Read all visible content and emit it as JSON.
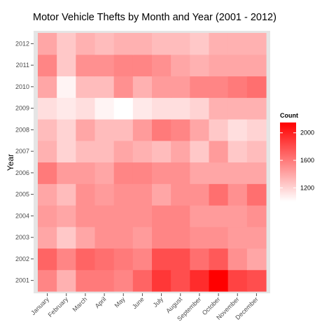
{
  "chart_data": {
    "type": "heatmap",
    "title": "Motor Vehicle Thefts by Month and Year (2001 - 2012)",
    "xlabel": "",
    "ylabel": "Year",
    "x": [
      "January",
      "February",
      "March",
      "April",
      "May",
      "June",
      "July",
      "August",
      "September",
      "October",
      "November",
      "December"
    ],
    "y": [
      "2001",
      "2002",
      "2003",
      "2004",
      "2005",
      "2006",
      "2007",
      "2008",
      "2009",
      "2010",
      "2011",
      "2012"
    ],
    "values": [
      [
        1550,
        1350,
        1600,
        1600,
        1550,
        1700,
        1900,
        1800,
        1950,
        2150,
        1850,
        1800
      ],
      [
        1700,
        1550,
        1700,
        1650,
        1600,
        1550,
        1800,
        1800,
        1650,
        1750,
        1500,
        1400
      ],
      [
        1400,
        1250,
        1400,
        1500,
        1500,
        1450,
        1550,
        1550,
        1500,
        1500,
        1450,
        1450
      ],
      [
        1450,
        1400,
        1500,
        1500,
        1500,
        1500,
        1550,
        1550,
        1450,
        1450,
        1450,
        1500
      ],
      [
        1400,
        1300,
        1500,
        1450,
        1500,
        1500,
        1400,
        1500,
        1500,
        1650,
        1500,
        1650
      ],
      [
        1600,
        1450,
        1450,
        1400,
        1550,
        1550,
        1500,
        1500,
        1400,
        1400,
        1400,
        1400
      ],
      [
        1350,
        1200,
        1300,
        1300,
        1400,
        1350,
        1300,
        1400,
        1250,
        1450,
        1250,
        1300
      ],
      [
        1300,
        1200,
        1400,
        1300,
        1300,
        1450,
        1600,
        1550,
        1400,
        1250,
        1150,
        1200
      ],
      [
        1150,
        1100,
        1150,
        1050,
        1000,
        1100,
        1150,
        1150,
        1200,
        1350,
        1350,
        1350
      ],
      [
        1400,
        1050,
        1300,
        1300,
        1500,
        1350,
        1450,
        1450,
        1550,
        1550,
        1600,
        1650
      ],
      [
        1550,
        1250,
        1500,
        1500,
        1550,
        1550,
        1500,
        1400,
        1350,
        1400,
        1400,
        1400
      ],
      [
        1400,
        1250,
        1350,
        1300,
        1350,
        1350,
        1300,
        1300,
        1250,
        1350,
        1350,
        1350
      ]
    ],
    "legend": {
      "title": "Count",
      "ticks": [
        1200,
        1600,
        2000
      ],
      "range": [
        1000,
        2150
      ],
      "low_color": "#ffffff",
      "high_color": "#ff0000",
      "placement": "right"
    },
    "panel_background": "#e5e5e5"
  }
}
